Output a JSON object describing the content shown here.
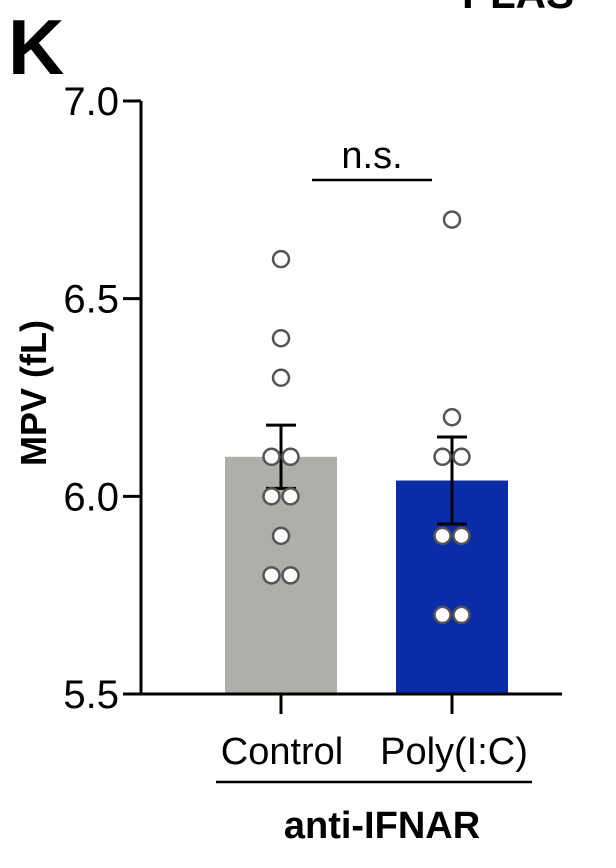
{
  "panel_label": "K",
  "top_cut_text": "PLAS",
  "chart_data": {
    "type": "bar",
    "categories": [
      "Control",
      "Poly(I:C)"
    ],
    "group_label": "anti-IFNAR",
    "ylabel": "MPV (fL)",
    "ylim": [
      5.5,
      7.0
    ],
    "yticks": [
      5.5,
      6.0,
      6.5,
      7.0
    ],
    "ytick_labels": [
      "5.5",
      "6.0",
      "6.5",
      "7.0"
    ],
    "grid": false,
    "series": [
      {
        "values": [
          6.1,
          6.04
        ],
        "errors": [
          0.08,
          0.11
        ],
        "colors": [
          "#aeafab",
          "#0a2ca8"
        ],
        "points": [
          [
            6.6,
            6.4,
            6.3,
            6.1,
            6.1,
            6.0,
            6.0,
            5.9,
            5.8,
            5.8
          ],
          [
            6.7,
            6.2,
            6.1,
            6.1,
            5.9,
            5.9,
            5.7,
            5.7
          ]
        ]
      }
    ],
    "annotations": [
      {
        "text": "n.s.",
        "between": [
          "Control",
          "Poly(I:C)"
        ]
      }
    ]
  }
}
